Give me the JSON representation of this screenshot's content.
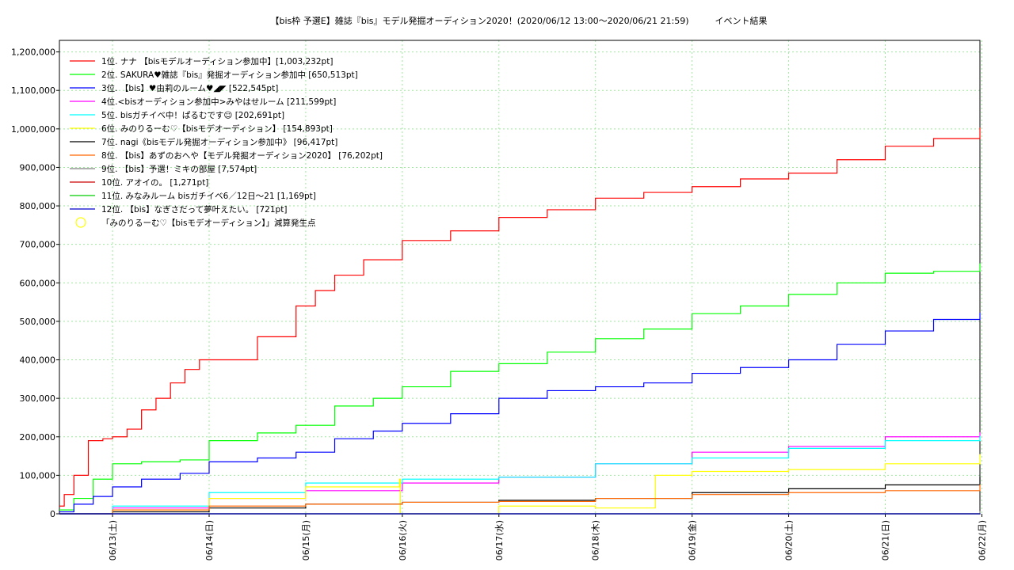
{
  "chart_data": {
    "type": "line",
    "title": "【bis枠 予選E】雑誌『bis』モデル発掘オーディション2020！(2020/06/12 13:00〜2020/06/21 21:59)　　　イベント結果",
    "xlabel": "",
    "ylabel": "",
    "x_tick_labels": [
      "06/13(土)",
      "06/14(日)",
      "06/15(月)",
      "06/16(火)",
      "06/17(水)",
      "06/18(木)",
      "06/19(金)",
      "06/20(土)",
      "06/21(日)",
      "06/22(月)"
    ],
    "y_tick_labels": [
      "0",
      "100,000",
      "200,000",
      "300,000",
      "400,000",
      "500,000",
      "600,000",
      "700,000",
      "800,000",
      "900,000",
      "1,000,000",
      "1,100,000",
      "1,200,000"
    ],
    "xlim": [
      0.45,
      9.98
    ],
    "ylim": [
      0,
      1230000
    ],
    "grid": true,
    "legend_position": "top-left",
    "series": [
      {
        "name": "1位. ナナ 【bisモデルオーディション参加中】[1,003,232pt]",
        "color": "#ff0000",
        "x": [
          0.45,
          0.5,
          0.6,
          0.75,
          0.9,
          1.0,
          1.15,
          1.3,
          1.45,
          1.6,
          1.75,
          1.9,
          2.0,
          2.5,
          2.9,
          3.1,
          3.3,
          3.6,
          4.0,
          4.5,
          5.0,
          5.5,
          6.0,
          6.5,
          7.0,
          7.5,
          8.0,
          8.5,
          9.0,
          9.5,
          9.98
        ],
        "values": [
          20000,
          50000,
          100000,
          190000,
          195000,
          200000,
          220000,
          270000,
          300000,
          340000,
          375000,
          400000,
          400000,
          460000,
          540000,
          580000,
          620000,
          660000,
          710000,
          735000,
          770000,
          790000,
          820000,
          835000,
          850000,
          870000,
          885000,
          920000,
          955000,
          975000,
          1003232
        ]
      },
      {
        "name": "2位. SAKURA♥雑誌『bis』発掘オーディション参加中 [650,513pt]",
        "color": "#00ff00",
        "x": [
          0.45,
          0.6,
          0.8,
          1.0,
          1.3,
          1.7,
          2.0,
          2.5,
          2.9,
          3.3,
          3.7,
          4.0,
          4.5,
          5.0,
          5.5,
          6.0,
          6.5,
          7.0,
          7.5,
          8.0,
          8.5,
          9.0,
          9.5,
          9.98
        ],
        "values": [
          10000,
          40000,
          90000,
          130000,
          135000,
          140000,
          190000,
          210000,
          230000,
          280000,
          300000,
          330000,
          370000,
          390000,
          420000,
          455000,
          480000,
          520000,
          540000,
          570000,
          600000,
          625000,
          630000,
          650513
        ]
      },
      {
        "name": "3位. 【bis】♥由莉のルーム♥◢◤ [522,545pt]",
        "color": "#0000ff",
        "x": [
          0.45,
          0.6,
          0.8,
          1.0,
          1.3,
          1.7,
          2.0,
          2.5,
          2.9,
          3.3,
          3.7,
          4.0,
          4.5,
          5.0,
          5.5,
          6.0,
          6.5,
          7.0,
          7.5,
          8.0,
          8.5,
          9.0,
          9.5,
          9.98
        ],
        "values": [
          5000,
          25000,
          45000,
          70000,
          90000,
          105000,
          135000,
          145000,
          160000,
          195000,
          215000,
          235000,
          260000,
          300000,
          320000,
          330000,
          340000,
          365000,
          380000,
          400000,
          440000,
          475000,
          505000,
          522545
        ]
      },
      {
        "name": "4位.<bisオーディション参加中>みやはせルーム [211,599pt]",
        "color": "#ff00ff",
        "x": [
          0.45,
          1.0,
          2.0,
          3.0,
          4.0,
          5.0,
          6.0,
          7.0,
          8.0,
          9.0,
          9.98
        ],
        "values": [
          0,
          15000,
          40000,
          60000,
          80000,
          95000,
          130000,
          160000,
          175000,
          200000,
          211599
        ]
      },
      {
        "name": "5位. bisガチイベ中！ぱるむです☺ [202,691pt]",
        "color": "#00ffff",
        "x": [
          0.45,
          1.0,
          2.0,
          3.0,
          4.0,
          5.0,
          6.0,
          7.0,
          8.0,
          9.0,
          9.98
        ],
        "values": [
          0,
          20000,
          55000,
          80000,
          90000,
          95000,
          130000,
          145000,
          170000,
          190000,
          202691
        ]
      },
      {
        "name": "6位. みのりるーむ♡【bisモデオーディション】 [154,893pt]",
        "color": "#ffff00",
        "x": [
          0.45,
          1.0,
          2.0,
          3.0,
          3.97,
          3.98,
          5.0,
          6.0,
          6.6,
          6.62,
          7.0,
          8.0,
          9.0,
          9.98
        ],
        "values": [
          0,
          10000,
          40000,
          70000,
          90000,
          0,
          20000,
          15000,
          15000,
          100000,
          110000,
          115000,
          130000,
          154893
        ]
      },
      {
        "name": "7位. nagi《bisモデル発掘オーディション参加中》 [96,417pt]",
        "color": "#000000",
        "x": [
          0.45,
          1.0,
          2.0,
          3.0,
          4.0,
          5.0,
          6.0,
          7.0,
          8.0,
          9.0,
          9.98
        ],
        "values": [
          0,
          5000,
          15000,
          25000,
          30000,
          35000,
          40000,
          55000,
          65000,
          75000,
          96417
        ]
      },
      {
        "name": "8位. 【bis】あずのおへや【モデル発掘オーディション2020】 [76,202pt]",
        "color": "#ff6600",
        "x": [
          0.45,
          1.0,
          2.0,
          3.0,
          4.0,
          5.0,
          6.0,
          7.0,
          8.0,
          9.0,
          9.98
        ],
        "values": [
          0,
          10000,
          20000,
          25000,
          30000,
          32000,
          40000,
          50000,
          55000,
          60000,
          76202
        ]
      },
      {
        "name": "9位. 【bis】予選！ミキの部屋 [7,574pt]",
        "color": "#808080",
        "x": [
          0.45,
          9.98
        ],
        "values": [
          0,
          7574
        ]
      },
      {
        "name": "10位. アオイの。 [1,271pt]",
        "color": "#cc0000",
        "x": [
          0.45,
          9.98
        ],
        "values": [
          0,
          1271
        ]
      },
      {
        "name": "11位. みなみルーム bisガチイベ6／12日〜21 [1,169pt]",
        "color": "#00cc00",
        "x": [
          0.45,
          9.98
        ],
        "values": [
          0,
          1169
        ]
      },
      {
        "name": "12位. 【bis】なぎさだって夢叶えたい。 [721pt]",
        "color": "#0000cc",
        "x": [
          0.45,
          9.98
        ],
        "values": [
          0,
          721
        ]
      }
    ],
    "marker_legend": {
      "name": "「みのりるーむ♡【bisモデオーディション】」減算発生点",
      "color": "#ffff00"
    }
  }
}
